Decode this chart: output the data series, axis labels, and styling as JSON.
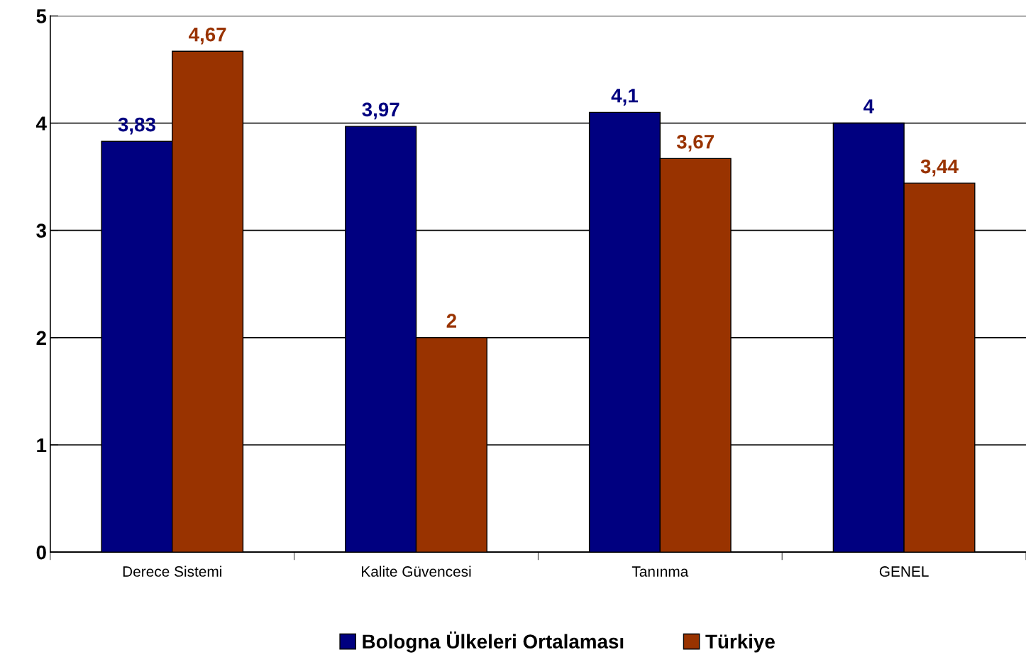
{
  "chart_data": {
    "type": "bar",
    "categories": [
      "Derece Sistemi",
      "Kalite Güvencesi",
      "Tanınma",
      "GENEL"
    ],
    "series": [
      {
        "name": "Bologna Ülkeleri Ortalaması",
        "color": "#000080",
        "values": [
          3.83,
          3.97,
          4.1,
          4
        ],
        "value_labels": [
          "3,83",
          "3,97",
          "4,1",
          "4"
        ]
      },
      {
        "name": "Türkiye",
        "color": "#993300",
        "values": [
          4.67,
          2,
          3.67,
          3.44
        ],
        "value_labels": [
          "4,67",
          "2",
          "3,67",
          "3,44"
        ]
      }
    ],
    "ylim": [
      0,
      5
    ],
    "yticks": [
      0,
      1,
      2,
      3,
      4,
      5
    ],
    "grid": "y",
    "legend": "bottom"
  }
}
